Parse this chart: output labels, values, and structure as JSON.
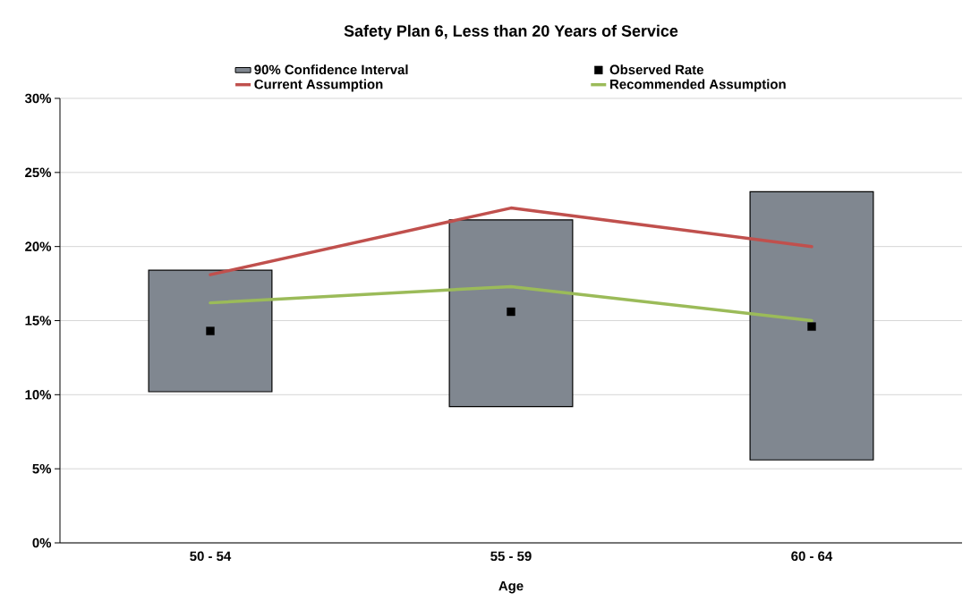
{
  "chart_data": {
    "type": "bar",
    "title": "Safety Plan 6, Less than 20 Years of Service",
    "xlabel": "Age",
    "categories": [
      "50 - 54",
      "55 - 59",
      "60 - 64"
    ],
    "ylim": [
      0,
      30
    ],
    "yticks": [
      {
        "value": 0,
        "label": "0%"
      },
      {
        "value": 5,
        "label": "5%"
      },
      {
        "value": 10,
        "label": "10%"
      },
      {
        "value": 15,
        "label": "15%"
      },
      {
        "value": 20,
        "label": "20%"
      },
      {
        "value": 25,
        "label": "25%"
      },
      {
        "value": 30,
        "label": "30%"
      }
    ],
    "grid": "y",
    "legend": "top",
    "series": [
      {
        "name": "90% Confidence Interval",
        "type": "bar",
        "color": "#808790",
        "base": [
          10.2,
          9.2,
          5.6
        ],
        "values": [
          8.2,
          12.6,
          18.1
        ]
      },
      {
        "name": "Observed Rate",
        "type": "scatter",
        "color": "#000000",
        "marker": "square",
        "values": [
          14.3,
          15.6,
          14.6
        ]
      },
      {
        "name": "Current Assumption",
        "type": "line",
        "color": "#c0504d",
        "values": [
          18.1,
          22.6,
          20.0
        ]
      },
      {
        "name": "Recommended Assumption",
        "type": "line",
        "color": "#9bbb59",
        "values": [
          16.2,
          17.3,
          15.0
        ]
      }
    ]
  }
}
